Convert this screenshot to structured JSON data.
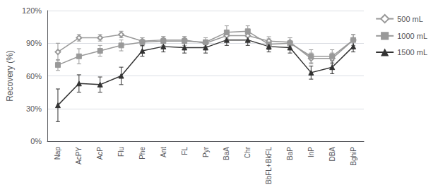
{
  "chart_data": {
    "type": "line",
    "categories": [
      "Nap",
      "AcPY",
      "AcP",
      "Flu",
      "Phe",
      "Ant",
      "FL",
      "Pyr",
      "BaA",
      "Chr",
      "BbFL+BkFL",
      "BaP",
      "InP",
      "DBA",
      "BghiP"
    ],
    "series": [
      {
        "name": "500 mL",
        "color": "#999999",
        "marker": "diamond_open",
        "values": [
          82,
          95,
          95,
          98,
          92,
          93,
          93,
          90,
          97,
          97,
          92,
          91,
          76,
          76,
          93
        ],
        "errors": [
          8,
          3,
          3,
          3,
          3,
          3,
          3,
          3,
          5,
          5,
          4,
          4,
          5,
          5,
          5
        ]
      },
      {
        "name": "1000 mL",
        "color": "#999999",
        "marker": "square",
        "values": [
          70,
          78,
          83,
          88,
          91,
          92,
          92,
          91,
          100,
          101,
          89,
          90,
          78,
          78,
          93
        ],
        "errors": [
          5,
          7,
          5,
          5,
          4,
          4,
          4,
          4,
          6,
          5,
          5,
          5,
          6,
          6,
          5
        ]
      },
      {
        "name": "1500 mL",
        "color": "#333333",
        "marker": "triangle",
        "values": [
          33,
          53,
          52,
          60,
          83,
          87,
          86,
          86,
          93,
          93,
          87,
          86,
          63,
          68,
          87
        ],
        "errors": [
          15,
          8,
          7,
          8,
          5,
          5,
          5,
          5,
          5,
          5,
          5,
          5,
          6,
          6,
          5
        ]
      }
    ],
    "ylabel": "Recovery (%)",
    "ylim": [
      0,
      120
    ],
    "yticks": [
      {
        "value": 0,
        "label": "0%"
      },
      {
        "value": 30,
        "label": "30%"
      },
      {
        "value": 60,
        "label": "60%"
      },
      {
        "value": 90,
        "label": "90%"
      },
      {
        "value": 120,
        "label": "120%"
      }
    ],
    "grid": true,
    "legend": "right"
  }
}
